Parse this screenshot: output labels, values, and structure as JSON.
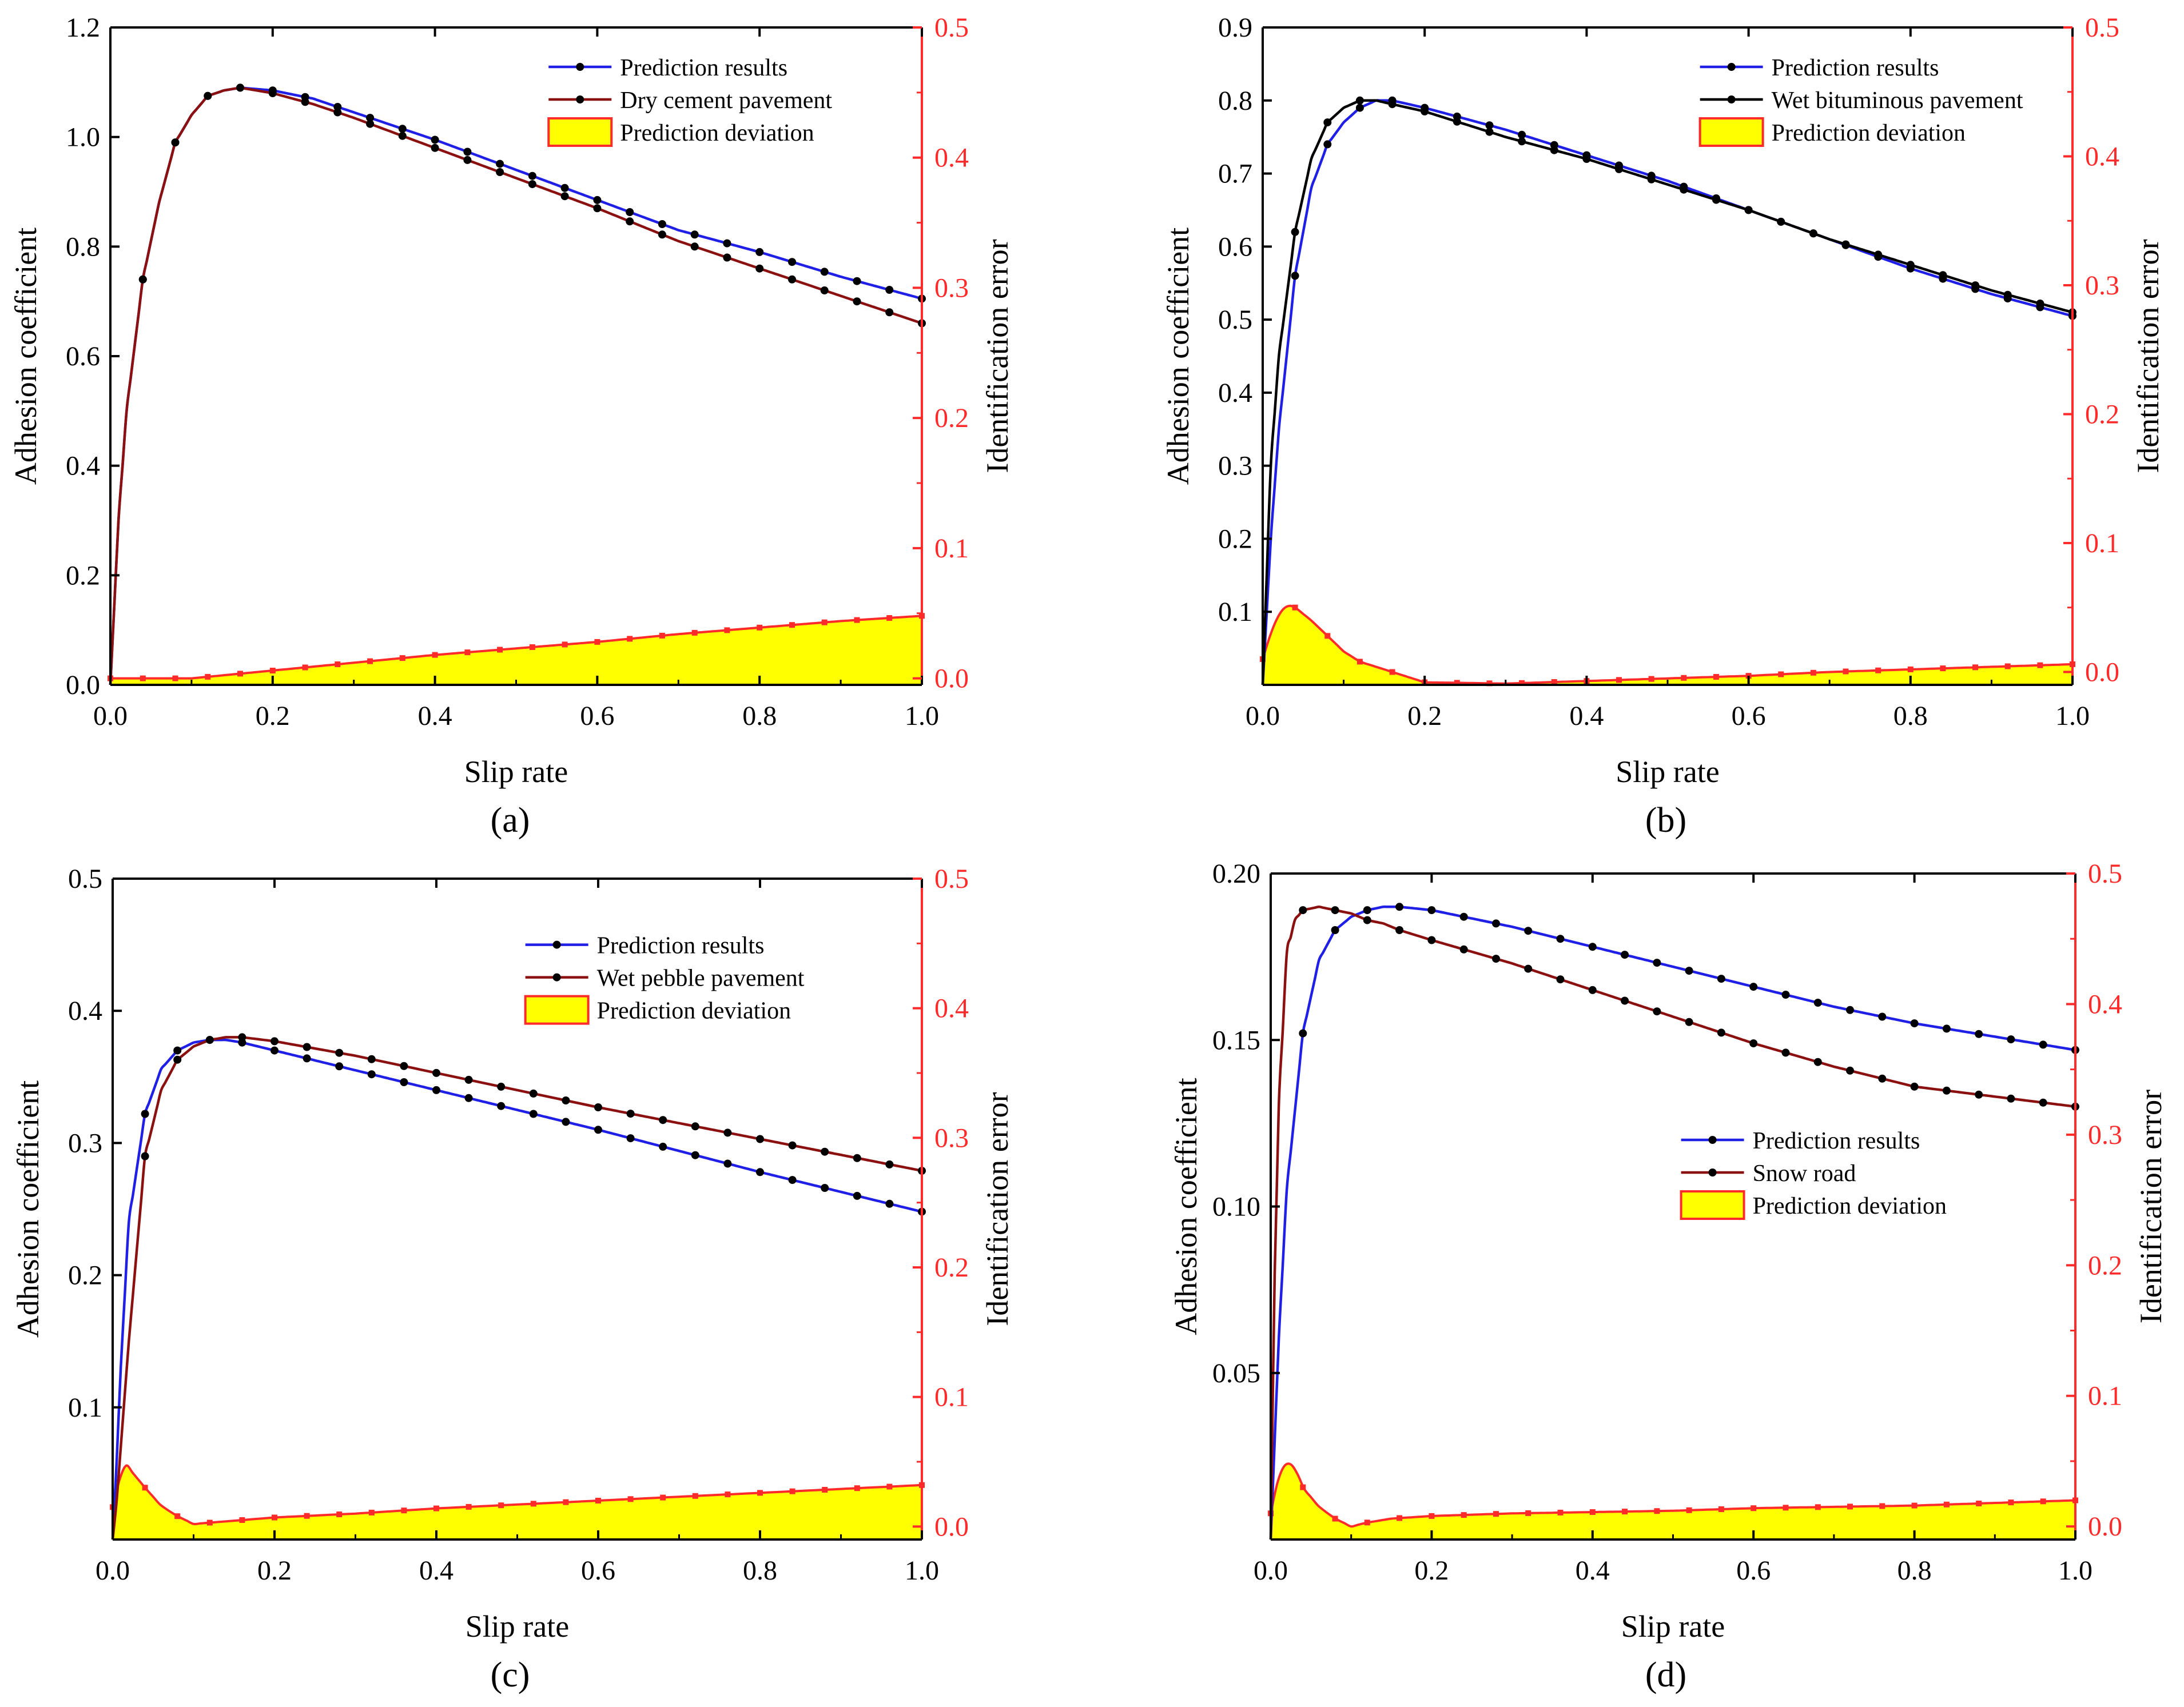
{
  "figure": {
    "colors": {
      "blue": "#1f1fe6",
      "darkred": "#8b1010",
      "black": "#000000",
      "red": "#ff2a2a",
      "yellow": "#ffff00",
      "axis": "#000000"
    }
  },
  "chart_data": [
    {
      "panel": "a",
      "caption": "(a)",
      "type": "line",
      "xlabel": "Slip rate",
      "ylabel": "Adhesion coefficient",
      "y2label": "Identification error",
      "xlim": [
        0,
        1
      ],
      "ylim": [
        0,
        1.2
      ],
      "y2lim": [
        -0.005,
        0.5
      ],
      "xticks": [
        "0.0",
        "0.2",
        "0.4",
        "0.6",
        "0.8",
        "1.0"
      ],
      "yticks": [
        {
          "v": 0.0,
          "t": "0.0"
        },
        {
          "v": 0.2,
          "t": "0.2"
        },
        {
          "v": 0.4,
          "t": "0.4"
        },
        {
          "v": 0.6,
          "t": "0.6"
        },
        {
          "v": 0.8,
          "t": "0.8"
        },
        {
          "v": 1.0,
          "t": "1.0"
        },
        {
          "v": 1.2,
          "t": "1.2"
        }
      ],
      "y2ticks": [
        {
          "v": 0.0,
          "t": "0.0"
        },
        {
          "v": 0.1,
          "t": "0.1"
        },
        {
          "v": 0.2,
          "t": "0.2"
        },
        {
          "v": 0.3,
          "t": "0.3"
        },
        {
          "v": 0.4,
          "t": "0.4"
        },
        {
          "v": 0.5,
          "t": "0.5"
        }
      ],
      "legend": {
        "position": "top-right",
        "items": [
          "Prediction results",
          "Dry cement pavement",
          "Prediction deviation"
        ]
      },
      "series": [
        {
          "name": "Prediction results",
          "color": "blue",
          "x": [
            0,
            0.005,
            0.01,
            0.02,
            0.04,
            0.06,
            0.08,
            0.1,
            0.12,
            0.14,
            0.16,
            0.2,
            0.25,
            0.3,
            0.4,
            0.5,
            0.6,
            0.7,
            0.8,
            0.9,
            1.0
          ],
          "y": [
            0,
            0.15,
            0.3,
            0.5,
            0.74,
            0.88,
            0.99,
            1.04,
            1.075,
            1.085,
            1.09,
            1.085,
            1.07,
            1.045,
            0.995,
            0.94,
            0.885,
            0.83,
            0.79,
            0.745,
            0.705
          ]
        },
        {
          "name": "Dry cement pavement",
          "color": "darkred",
          "x": [
            0,
            0.005,
            0.01,
            0.02,
            0.04,
            0.06,
            0.08,
            0.1,
            0.12,
            0.14,
            0.16,
            0.2,
            0.25,
            0.3,
            0.4,
            0.5,
            0.6,
            0.7,
            0.8,
            0.9,
            1.0
          ],
          "y": [
            0,
            0.15,
            0.3,
            0.5,
            0.74,
            0.88,
            0.99,
            1.04,
            1.075,
            1.085,
            1.09,
            1.08,
            1.06,
            1.035,
            0.98,
            0.925,
            0.87,
            0.81,
            0.76,
            0.71,
            0.66
          ]
        }
      ],
      "deviation": {
        "name": "Prediction deviation",
        "x": [
          0,
          0.04,
          0.08,
          0.1,
          0.2,
          0.3,
          0.4,
          0.5,
          0.6,
          0.7,
          0.8,
          0.9,
          1.0
        ],
        "y": [
          0.0,
          0.0,
          0.0,
          0.0,
          0.006,
          0.012,
          0.018,
          0.023,
          0.028,
          0.034,
          0.039,
          0.044,
          0.048
        ]
      },
      "dot_step": 0.04
    },
    {
      "panel": "b",
      "caption": "(b)",
      "type": "line",
      "xlabel": "Slip rate",
      "ylabel": "Adhesion coefficient",
      "y2label": "Identification error",
      "xlim": [
        0,
        1
      ],
      "ylim": [
        0,
        0.9
      ],
      "y2lim": [
        -0.01,
        0.5
      ],
      "xticks": [
        "0.0",
        "0.2",
        "0.4",
        "0.6",
        "0.8",
        "1.0"
      ],
      "yticks": [
        {
          "v": 0.1,
          "t": "0.1"
        },
        {
          "v": 0.2,
          "t": "0.2"
        },
        {
          "v": 0.3,
          "t": "0.3"
        },
        {
          "v": 0.4,
          "t": "0.4"
        },
        {
          "v": 0.5,
          "t": "0.5"
        },
        {
          "v": 0.6,
          "t": "0.6"
        },
        {
          "v": 0.7,
          "t": "0.7"
        },
        {
          "v": 0.8,
          "t": "0.8"
        },
        {
          "v": 0.9,
          "t": "0.9"
        }
      ],
      "y2ticks": [
        {
          "v": 0.0,
          "t": "0.0"
        },
        {
          "v": 0.1,
          "t": "0.1"
        },
        {
          "v": 0.2,
          "t": "0.2"
        },
        {
          "v": 0.3,
          "t": "0.3"
        },
        {
          "v": 0.4,
          "t": "0.4"
        },
        {
          "v": 0.5,
          "t": "0.5"
        }
      ],
      "legend": {
        "position": "top-right",
        "items": [
          "Prediction results",
          "Wet bituminous pavement",
          "Prediction deviation"
        ]
      },
      "series": [
        {
          "name": "Prediction results",
          "color": "blue",
          "x": [
            0,
            0.005,
            0.01,
            0.02,
            0.04,
            0.06,
            0.08,
            0.1,
            0.12,
            0.14,
            0.16,
            0.2,
            0.3,
            0.4,
            0.5,
            0.6,
            0.7,
            0.8,
            0.9,
            1.0
          ],
          "y": [
            0,
            0.1,
            0.2,
            0.35,
            0.56,
            0.68,
            0.74,
            0.77,
            0.79,
            0.8,
            0.8,
            0.79,
            0.76,
            0.725,
            0.69,
            0.65,
            0.61,
            0.57,
            0.535,
            0.505
          ]
        },
        {
          "name": "Wet bituminous pavement",
          "color": "black",
          "x": [
            0,
            0.005,
            0.01,
            0.02,
            0.04,
            0.06,
            0.08,
            0.1,
            0.12,
            0.14,
            0.16,
            0.2,
            0.3,
            0.4,
            0.5,
            0.6,
            0.7,
            0.8,
            0.9,
            1.0
          ],
          "y": [
            0,
            0.15,
            0.3,
            0.45,
            0.62,
            0.72,
            0.77,
            0.79,
            0.8,
            0.8,
            0.795,
            0.785,
            0.75,
            0.72,
            0.685,
            0.65,
            0.61,
            0.575,
            0.54,
            0.51
          ]
        }
      ],
      "deviation": {
        "name": "Prediction deviation",
        "x": [
          0,
          0.01,
          0.02,
          0.03,
          0.04,
          0.06,
          0.08,
          0.1,
          0.12,
          0.15,
          0.2,
          0.3,
          0.4,
          0.5,
          0.6,
          0.7,
          0.8,
          0.9,
          1.0
        ],
        "y": [
          0.01,
          0.03,
          0.045,
          0.052,
          0.05,
          0.04,
          0.028,
          0.016,
          0.008,
          0.002,
          -0.008,
          -0.009,
          -0.007,
          -0.005,
          -0.003,
          0.0,
          0.002,
          0.004,
          0.006
        ]
      },
      "dot_step": 0.04
    },
    {
      "panel": "c",
      "caption": "(c)",
      "type": "line",
      "xlabel": "Slip rate",
      "ylabel": "Adhesion coefficient",
      "y2label": "Identification error",
      "xlim": [
        0,
        1
      ],
      "ylim": [
        0,
        0.5
      ],
      "y2lim": [
        -0.01,
        0.5
      ],
      "xticks": [
        "0.0",
        "0.2",
        "0.4",
        "0.6",
        "0.8",
        "1.0"
      ],
      "yticks": [
        {
          "v": 0.1,
          "t": "0.1"
        },
        {
          "v": 0.2,
          "t": "0.2"
        },
        {
          "v": 0.3,
          "t": "0.3"
        },
        {
          "v": 0.4,
          "t": "0.4"
        },
        {
          "v": 0.5,
          "t": "0.5"
        }
      ],
      "y2ticks": [
        {
          "v": 0.0,
          "t": "0.0"
        },
        {
          "v": 0.1,
          "t": "0.1"
        },
        {
          "v": 0.2,
          "t": "0.2"
        },
        {
          "v": 0.3,
          "t": "0.3"
        },
        {
          "v": 0.4,
          "t": "0.4"
        },
        {
          "v": 0.5,
          "t": "0.5"
        }
      ],
      "legend": {
        "position": "top-right",
        "items": [
          "Prediction results",
          "Wet pebble pavement",
          "Prediction deviation"
        ]
      },
      "series": [
        {
          "name": "Prediction results",
          "color": "blue",
          "x": [
            0,
            0.005,
            0.01,
            0.02,
            0.04,
            0.06,
            0.08,
            0.1,
            0.12,
            0.14,
            0.16,
            0.2,
            0.3,
            0.4,
            0.5,
            0.6,
            0.7,
            0.8,
            0.9,
            1.0
          ],
          "y": [
            0,
            0.06,
            0.13,
            0.24,
            0.322,
            0.356,
            0.37,
            0.376,
            0.378,
            0.378,
            0.376,
            0.37,
            0.355,
            0.34,
            0.325,
            0.31,
            0.294,
            0.278,
            0.263,
            0.248
          ]
        },
        {
          "name": "Wet pebble pavement",
          "color": "darkred",
          "x": [
            0,
            0.005,
            0.01,
            0.02,
            0.04,
            0.06,
            0.08,
            0.1,
            0.12,
            0.14,
            0.16,
            0.2,
            0.3,
            0.4,
            0.5,
            0.6,
            0.7,
            0.8,
            0.9,
            1.0
          ],
          "y": [
            0,
            0.03,
            0.07,
            0.15,
            0.29,
            0.34,
            0.363,
            0.373,
            0.378,
            0.38,
            0.38,
            0.377,
            0.366,
            0.353,
            0.34,
            0.327,
            0.315,
            0.303,
            0.291,
            0.279
          ]
        }
      ],
      "deviation": {
        "name": "Prediction deviation",
        "x": [
          0,
          0.01,
          0.015,
          0.02,
          0.04,
          0.06,
          0.08,
          0.1,
          0.12,
          0.2,
          0.3,
          0.4,
          0.5,
          0.6,
          0.7,
          0.8,
          0.9,
          1.0
        ],
        "y": [
          0.015,
          0.04,
          0.048,
          0.045,
          0.03,
          0.016,
          0.008,
          0.002,
          0.003,
          0.007,
          0.01,
          0.014,
          0.017,
          0.02,
          0.023,
          0.026,
          0.029,
          0.032
        ]
      },
      "dot_step": 0.04
    },
    {
      "panel": "d",
      "caption": "(d)",
      "type": "line",
      "xlabel": "Slip rate",
      "ylabel": "Adhesion coefficient",
      "y2label": "Identification error",
      "xlim": [
        0,
        1
      ],
      "ylim": [
        0,
        0.2
      ],
      "y2lim": [
        -0.01,
        0.5
      ],
      "xticks": [
        "0.0",
        "0.2",
        "0.4",
        "0.6",
        "0.8",
        "1.0"
      ],
      "yticks": [
        {
          "v": 0.05,
          "t": "0.05"
        },
        {
          "v": 0.1,
          "t": "0.10"
        },
        {
          "v": 0.15,
          "t": "0.15"
        },
        {
          "v": 0.2,
          "t": "0.20"
        }
      ],
      "y2ticks": [
        {
          "v": 0.0,
          "t": "0.0"
        },
        {
          "v": 0.1,
          "t": "0.1"
        },
        {
          "v": 0.2,
          "t": "0.2"
        },
        {
          "v": 0.3,
          "t": "0.3"
        },
        {
          "v": 0.4,
          "t": "0.4"
        },
        {
          "v": 0.5,
          "t": "0.5"
        }
      ],
      "legend": {
        "position": "center-right",
        "items": [
          "Prediction results",
          "Snow road",
          "Prediction deviation"
        ]
      },
      "series": [
        {
          "name": "Prediction results",
          "color": "blue",
          "x": [
            0,
            0.005,
            0.01,
            0.02,
            0.04,
            0.06,
            0.08,
            0.1,
            0.12,
            0.14,
            0.16,
            0.2,
            0.3,
            0.4,
            0.5,
            0.6,
            0.7,
            0.8,
            0.9,
            1.0
          ],
          "y": [
            0,
            0.03,
            0.06,
            0.105,
            0.152,
            0.174,
            0.183,
            0.187,
            0.189,
            0.19,
            0.19,
            0.189,
            0.184,
            0.178,
            0.172,
            0.166,
            0.16,
            0.155,
            0.151,
            0.147
          ]
        },
        {
          "name": "Snow road",
          "color": "darkred",
          "x": [
            0,
            0.005,
            0.01,
            0.02,
            0.03,
            0.04,
            0.06,
            0.08,
            0.1,
            0.12,
            0.14,
            0.16,
            0.2,
            0.3,
            0.4,
            0.5,
            0.6,
            0.7,
            0.8,
            0.9,
            1.0
          ],
          "y": [
            0,
            0.08,
            0.13,
            0.176,
            0.186,
            0.189,
            0.19,
            0.189,
            0.188,
            0.186,
            0.185,
            0.183,
            0.18,
            0.173,
            0.165,
            0.157,
            0.149,
            0.142,
            0.136,
            0.133,
            0.13
          ]
        }
      ],
      "deviation": {
        "name": "Prediction deviation",
        "x": [
          0,
          0.01,
          0.02,
          0.03,
          0.04,
          0.06,
          0.08,
          0.1,
          0.12,
          0.15,
          0.2,
          0.3,
          0.4,
          0.5,
          0.6,
          0.7,
          0.8,
          0.9,
          1.0
        ],
        "y": [
          0.01,
          0.038,
          0.05,
          0.045,
          0.03,
          0.015,
          0.006,
          0.0,
          0.003,
          0.006,
          0.008,
          0.01,
          0.011,
          0.012,
          0.014,
          0.015,
          0.016,
          0.018,
          0.02
        ]
      },
      "dot_step": 0.04
    }
  ]
}
